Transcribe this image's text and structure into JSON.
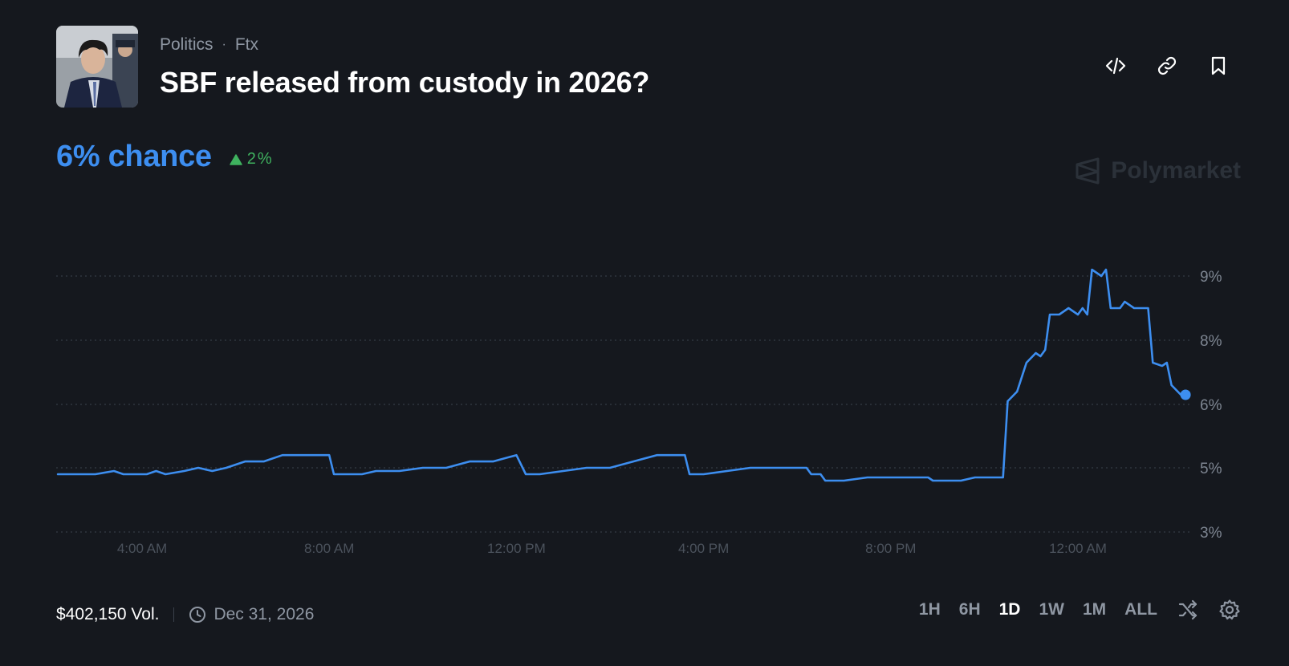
{
  "header": {
    "category": "Politics",
    "separator": "·",
    "tag": "Ftx",
    "title": "SBF released from custody in 2026?"
  },
  "actions": [
    {
      "icon": "embed-code-icon"
    },
    {
      "icon": "link-icon"
    },
    {
      "icon": "bookmark-icon"
    }
  ],
  "summary": {
    "chance": "6% chance",
    "delta": "2%",
    "delta_direction": "up",
    "delta_color": "#3fb25f",
    "accent_color": "#3d8ef0"
  },
  "brand": {
    "name": "Polymarket"
  },
  "footer": {
    "volume": "$402,150 Vol.",
    "end_date": "Dec 31, 2026",
    "ranges": [
      "1H",
      "6H",
      "1D",
      "1W",
      "1M",
      "ALL"
    ],
    "active_range": "1D"
  },
  "chart_data": {
    "type": "line",
    "title": "",
    "xlabel": "",
    "ylabel": "",
    "x_unit": "hours since midnight (day 1)",
    "x_ticks": [
      {
        "x": 4,
        "label": "4:00 AM"
      },
      {
        "x": 8,
        "label": "8:00 AM"
      },
      {
        "x": 12,
        "label": "12:00 PM"
      },
      {
        "x": 16,
        "label": "4:00 PM"
      },
      {
        "x": 20,
        "label": "8:00 PM"
      },
      {
        "x": 24,
        "label": "12:00 AM"
      }
    ],
    "y_ticks": [
      {
        "y": 9,
        "label": "9%"
      },
      {
        "y": 8,
        "label": "8%"
      },
      {
        "y": 6,
        "label": "6%"
      },
      {
        "y": 5,
        "label": "5%"
      },
      {
        "y": 3,
        "label": "3%"
      }
    ],
    "grid": true,
    "series": [
      {
        "color": "#3d8ef0",
        "points": [
          [
            2.2,
            4.8
          ],
          [
            3.0,
            4.8
          ],
          [
            3.4,
            4.9
          ],
          [
            3.6,
            4.8
          ],
          [
            4.1,
            4.8
          ],
          [
            4.3,
            4.9
          ],
          [
            4.5,
            4.8
          ],
          [
            4.9,
            4.9
          ],
          [
            5.2,
            5.0
          ],
          [
            5.5,
            4.9
          ],
          [
            5.8,
            5.0
          ],
          [
            6.2,
            5.1
          ],
          [
            6.6,
            5.1
          ],
          [
            7.0,
            5.2
          ],
          [
            7.5,
            5.2
          ],
          [
            8.0,
            5.2
          ],
          [
            8.1,
            4.8
          ],
          [
            8.3,
            4.8
          ],
          [
            8.7,
            4.8
          ],
          [
            9.0,
            4.9
          ],
          [
            9.5,
            4.9
          ],
          [
            10.0,
            5.0
          ],
          [
            10.5,
            5.0
          ],
          [
            11.0,
            5.1
          ],
          [
            11.5,
            5.1
          ],
          [
            12.0,
            5.2
          ],
          [
            12.2,
            4.8
          ],
          [
            12.5,
            4.8
          ],
          [
            13.0,
            4.9
          ],
          [
            13.5,
            5.0
          ],
          [
            14.0,
            5.0
          ],
          [
            14.5,
            5.1
          ],
          [
            15.0,
            5.2
          ],
          [
            15.6,
            5.2
          ],
          [
            15.7,
            4.8
          ],
          [
            16.0,
            4.8
          ],
          [
            16.5,
            4.9
          ],
          [
            17.0,
            5.0
          ],
          [
            17.5,
            5.0
          ],
          [
            18.0,
            5.0
          ],
          [
            18.2,
            5.0
          ],
          [
            18.3,
            4.8
          ],
          [
            18.5,
            4.8
          ],
          [
            18.6,
            4.6
          ],
          [
            18.8,
            4.6
          ],
          [
            19.0,
            4.6
          ],
          [
            19.5,
            4.7
          ],
          [
            20.0,
            4.7
          ],
          [
            20.8,
            4.7
          ],
          [
            20.9,
            4.6
          ],
          [
            21.2,
            4.6
          ],
          [
            21.5,
            4.6
          ],
          [
            21.8,
            4.7
          ],
          [
            22.4,
            4.7
          ],
          [
            22.5,
            6.1
          ],
          [
            22.7,
            6.4
          ],
          [
            22.9,
            7.3
          ],
          [
            23.1,
            7.6
          ],
          [
            23.2,
            7.5
          ],
          [
            23.3,
            7.7
          ],
          [
            23.4,
            8.4
          ],
          [
            23.6,
            8.4
          ],
          [
            23.8,
            8.5
          ],
          [
            24.0,
            8.4
          ],
          [
            24.1,
            8.5
          ],
          [
            24.2,
            8.4
          ],
          [
            24.3,
            9.1
          ],
          [
            24.5,
            9.0
          ],
          [
            24.6,
            9.1
          ],
          [
            24.7,
            8.5
          ],
          [
            24.9,
            8.5
          ],
          [
            25.0,
            8.6
          ],
          [
            25.2,
            8.5
          ],
          [
            25.5,
            8.5
          ],
          [
            25.6,
            7.3
          ],
          [
            25.8,
            7.2
          ],
          [
            25.9,
            7.3
          ],
          [
            26.0,
            6.6
          ],
          [
            26.2,
            6.3
          ],
          [
            26.3,
            6.3
          ]
        ]
      }
    ],
    "current_point": {
      "x": 26.3,
      "y": 6.3
    }
  }
}
